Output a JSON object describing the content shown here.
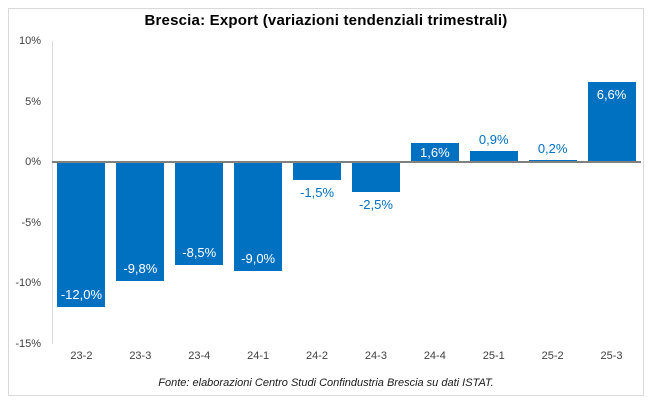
{
  "chart_data": {
    "type": "bar",
    "title": "Brescia: Export (variazioni tendenziali trimestrali)",
    "source_note": "Fonte: elaborazioni Centro Studi Confindustria Brescia su dati ISTAT.",
    "categories": [
      "23-2",
      "23-3",
      "23-4",
      "24-1",
      "24-2",
      "24-3",
      "24-4",
      "25-1",
      "25-2",
      "25-3"
    ],
    "values": [
      -12.0,
      -9.8,
      -8.5,
      -9.0,
      -1.5,
      -2.5,
      1.6,
      0.9,
      0.2,
      6.6
    ],
    "data_labels": [
      "-12,0%",
      "-9,8%",
      "-8,5%",
      "-9,0%",
      "-1,5%",
      "-2,5%",
      "1,6%",
      "0,9%",
      "0,2%",
      "6,6%"
    ],
    "label_placement": [
      "inside",
      "inside",
      "inside",
      "inside",
      "outside",
      "outside",
      "inside",
      "outside",
      "outside",
      "inside"
    ],
    "y_ticks": [
      {
        "label": "10%",
        "value": 10
      },
      {
        "label": "5%",
        "value": 5
      },
      {
        "label": "0%",
        "value": 0
      },
      {
        "label": "-5%",
        "value": -5
      },
      {
        "label": "-10%",
        "value": -10
      },
      {
        "label": "-15%",
        "value": -15
      }
    ],
    "ylim": [
      -15,
      10
    ],
    "xlabel": "",
    "ylabel": "",
    "grid": false,
    "legend": null,
    "colors": {
      "bar": "#0070C0",
      "label_inside": "#FFFFFF",
      "label_outside": "#0070C0",
      "zero_line": "#808080",
      "axis_line": "#D9D9D9",
      "tick_text": "#3F3F3F",
      "title_text": "#000000",
      "frame_border": "#D9D9D9",
      "background": "#FFFFFF"
    }
  }
}
